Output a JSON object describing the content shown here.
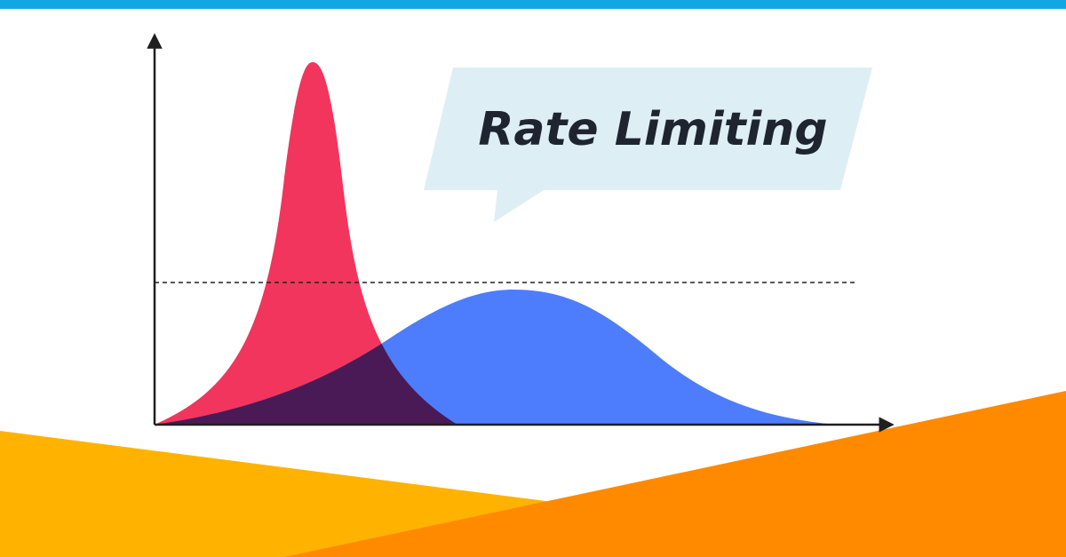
{
  "title": "Rate Limiting"
}
